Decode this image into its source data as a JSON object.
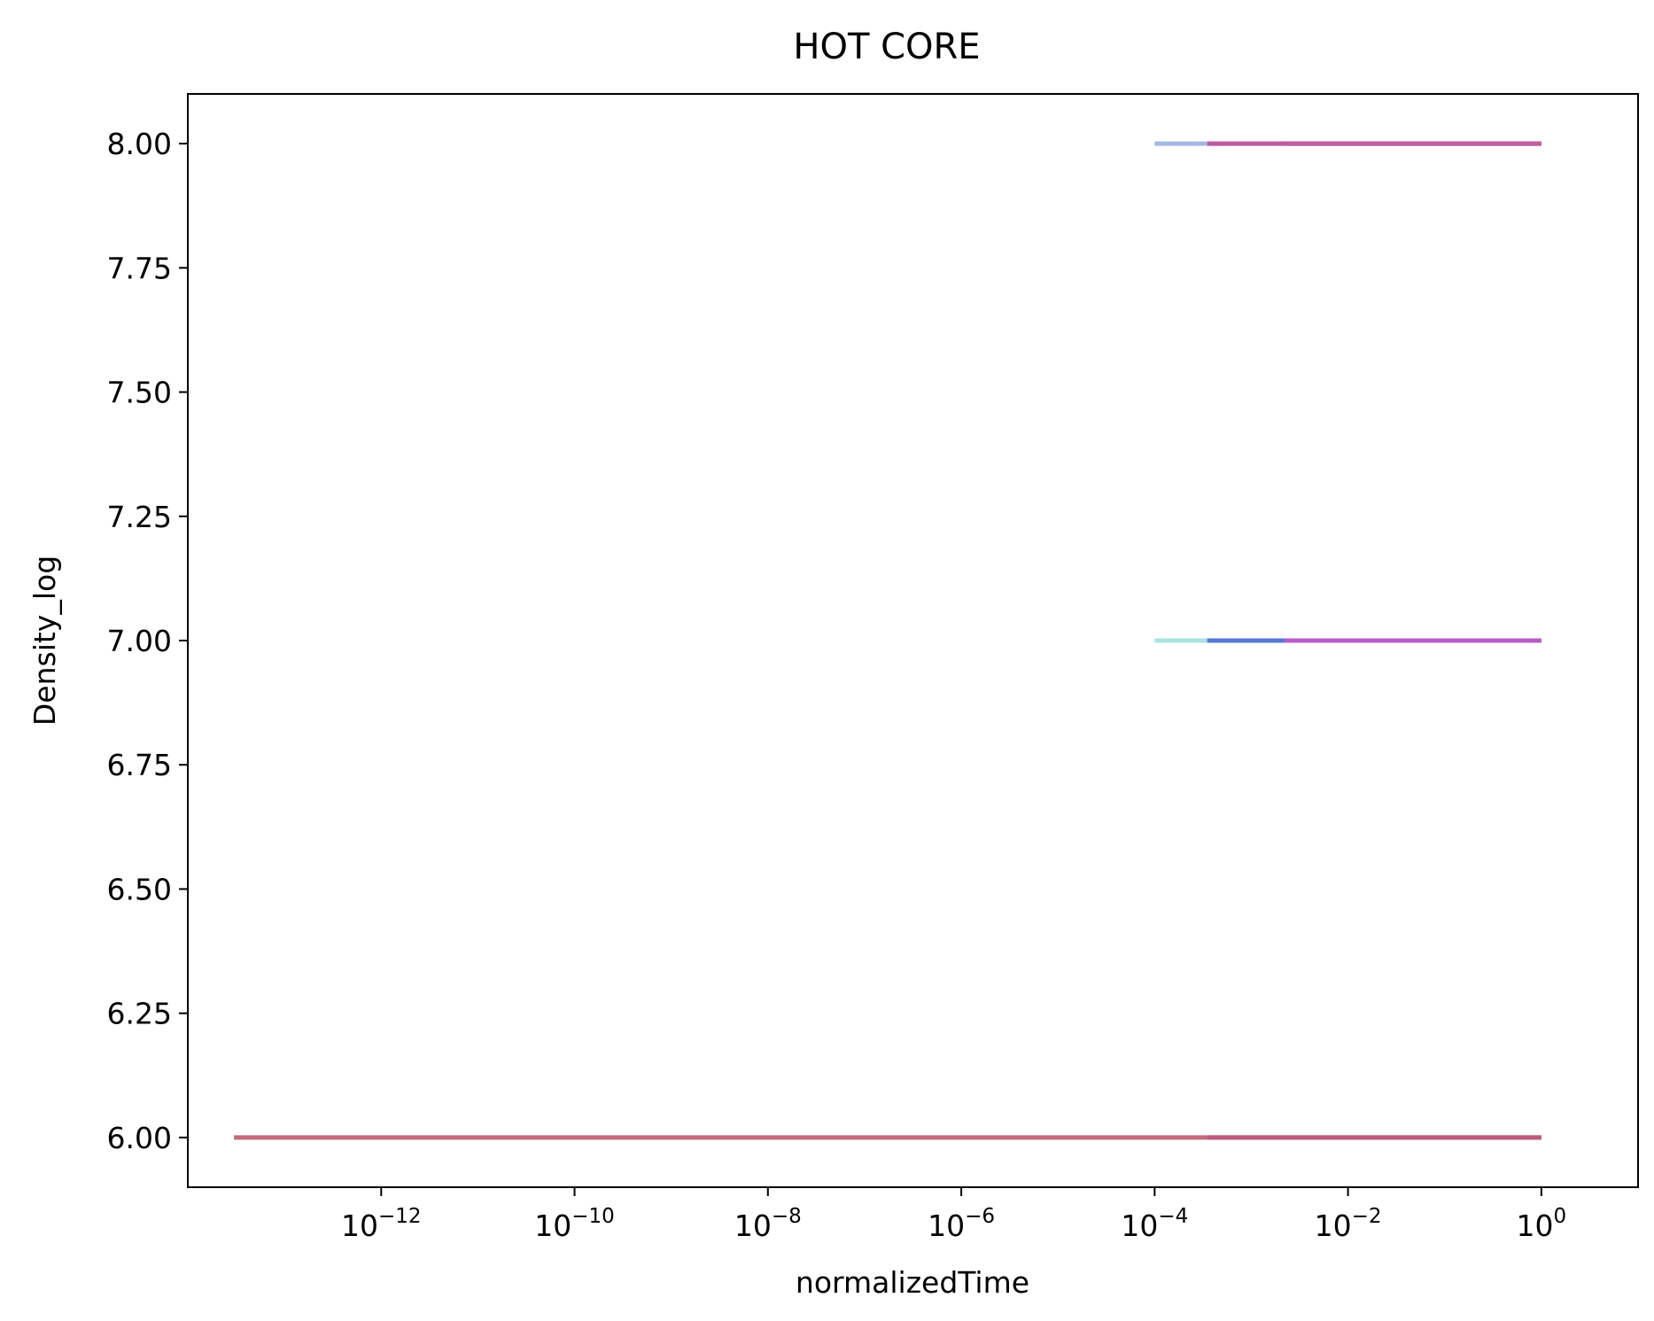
{
  "chart_data": {
    "type": "line",
    "title": "HOT CORE",
    "xlabel": "normalizedTime",
    "ylabel": "Density_log",
    "x_scale": "log",
    "xlim": [
      1e-14,
      10
    ],
    "ylim": [
      5.9,
      8.1
    ],
    "x_ticks": [
      {
        "base": "10",
        "exp": "−12",
        "value": 1e-12
      },
      {
        "base": "10",
        "exp": "−10",
        "value": 1e-10
      },
      {
        "base": "10",
        "exp": "−8",
        "value": 1e-08
      },
      {
        "base": "10",
        "exp": "−6",
        "value": 1e-06
      },
      {
        "base": "10",
        "exp": "−4",
        "value": 0.0001
      },
      {
        "base": "10",
        "exp": "−2",
        "value": 0.01
      },
      {
        "base": "10",
        "exp": "0",
        "value": 1
      }
    ],
    "y_ticks": [
      {
        "label": "6.00",
        "value": 6.0
      },
      {
        "label": "6.25",
        "value": 6.25
      },
      {
        "label": "6.50",
        "value": 6.5
      },
      {
        "label": "6.75",
        "value": 6.75
      },
      {
        "label": "7.00",
        "value": 7.0
      },
      {
        "label": "7.25",
        "value": 7.25
      },
      {
        "label": "7.50",
        "value": 7.5
      },
      {
        "label": "7.75",
        "value": 7.75
      },
      {
        "label": "8.00",
        "value": 8.0
      }
    ],
    "grid": false,
    "legend": "none",
    "series": [
      {
        "color": "#c46a7a",
        "x": [
          3e-14,
          1
        ],
        "y": [
          6.0,
          6.0
        ]
      },
      {
        "color": "#a9e4e2",
        "x": [
          0.0001,
          1
        ],
        "y": [
          7.0,
          7.0
        ]
      },
      {
        "color": "#a3b8e8",
        "x": [
          0.0001,
          1
        ],
        "y": [
          8.0,
          8.0
        ]
      },
      {
        "color": "#5577d6",
        "x": [
          0.00035,
          1
        ],
        "y": [
          7.0,
          7.0
        ]
      },
      {
        "color": "#c05aa2",
        "x": [
          0.00035,
          1
        ],
        "y": [
          8.0,
          8.0
        ]
      },
      {
        "color": "#b85cc6",
        "x": [
          0.0022,
          1
        ],
        "y": [
          7.0,
          7.0
        ]
      },
      {
        "color": "#c35fa0",
        "x": [
          0.0022,
          1
        ],
        "y": [
          8.0,
          8.0
        ]
      },
      {
        "color": "#c05a7f",
        "x": [
          0.00035,
          1
        ],
        "y": [
          6.0,
          6.0
        ]
      }
    ]
  }
}
